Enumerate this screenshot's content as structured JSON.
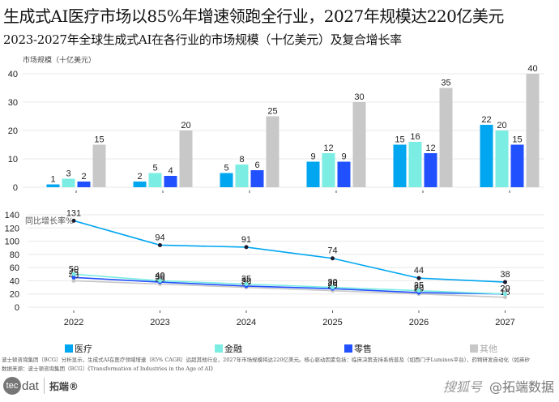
{
  "header": {
    "title": "生成式AI医疗市场以85%年增速领跑全行业，2027年规模达220亿美元",
    "subtitle": "2023-2027年全球生成式AI在各行业的市场规模（十亿美元）及复合增长率"
  },
  "colors": {
    "医疗": "#00A6F0",
    "金融": "#7BEDE3",
    "零售": "#2150FF",
    "其他": "#C8C8C8",
    "marker": "#1a1a2e"
  },
  "chart_data": [
    {
      "type": "bar",
      "title": "",
      "ylabel": "市场规模（十亿美元）",
      "xlabel": "",
      "categories": [
        "2022",
        "2023",
        "2024",
        "2025",
        "2026",
        "2027"
      ],
      "ylim": [
        0,
        40
      ],
      "yticks": [
        0,
        10,
        20,
        30,
        40
      ],
      "grid": true,
      "series": [
        {
          "name": "医疗",
          "values": [
            1,
            2,
            5,
            9,
            15,
            22
          ]
        },
        {
          "name": "金融",
          "values": [
            3,
            5,
            8,
            12,
            16,
            20
          ]
        },
        {
          "name": "零售",
          "values": [
            2,
            4,
            6,
            9,
            12,
            15
          ]
        },
        {
          "name": "其他",
          "values": [
            15,
            20,
            25,
            30,
            35,
            40
          ]
        }
      ]
    },
    {
      "type": "line",
      "title": "",
      "ylabel": "同比增长率%",
      "xlabel": "",
      "categories": [
        "2022",
        "2023",
        "2024",
        "2025",
        "2026",
        "2027"
      ],
      "ylim": [
        0,
        140
      ],
      "yticks": [
        0,
        20,
        40,
        60,
        80,
        100,
        120,
        140
      ],
      "grid": true,
      "series": [
        {
          "name": "医疗",
          "values": [
            131,
            94,
            91,
            74,
            44,
            38
          ]
        },
        {
          "name": "金融",
          "values": [
            50,
            40,
            35,
            30,
            25,
            20
          ]
        },
        {
          "name": "零售",
          "values": [
            45,
            38,
            32,
            28,
            22,
            20
          ]
        },
        {
          "name": "其他",
          "values": [
            40,
            35,
            30,
            25,
            20,
            15
          ]
        }
      ]
    }
  ],
  "legend": {
    "position": "bottom",
    "items": [
      "医疗",
      "金融",
      "零售",
      "其他"
    ]
  },
  "footer": {
    "note": "波士顿咨询集团（BCG）分析显示，生成式AI在医疗领域增速（85% CAGR）远超其他行业，2027年市场规模将达220亿美元。核心驱动因素包括：临床决策支持系统普及（如西门子Luminos平台）、药物研发自动化（如英矽",
    "source": "数据来源：波士顿咨询集团（BCG）《Transformation of Industries in the Age of AI》",
    "logo_mark": "tec",
    "logo_text": "dat",
    "logo_cn": "拓端®",
    "watermark_brand": "搜狐号",
    "watermark_handle": "@拓端数据"
  }
}
